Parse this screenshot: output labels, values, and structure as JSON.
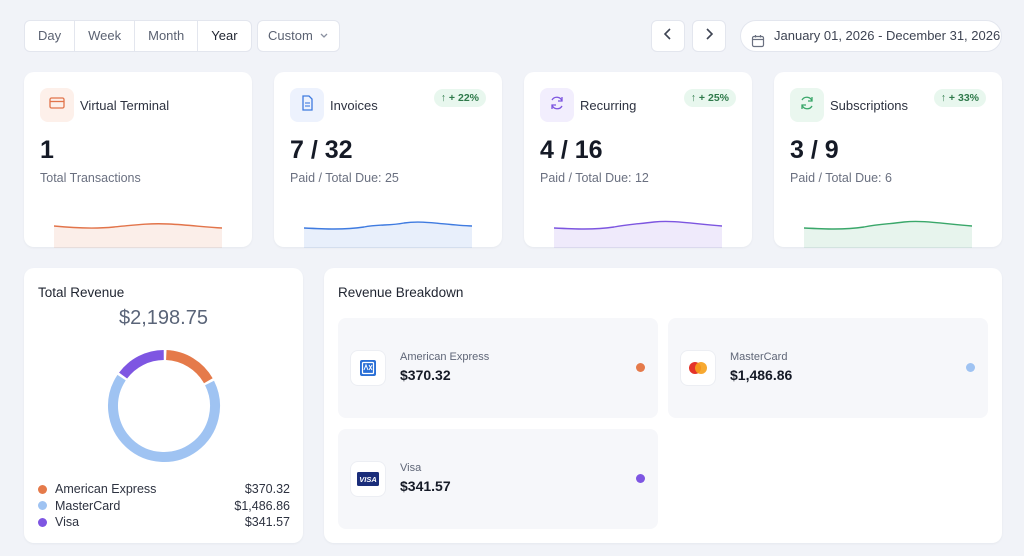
{
  "toolbar": {
    "ranges": [
      "Day",
      "Week",
      "Month",
      "Year"
    ],
    "active_range": "Year",
    "custom_label": "Custom",
    "date_range": "January 01, 2026 - December 31, 2026"
  },
  "stats": [
    {
      "title": "Virtual Terminal",
      "value": "1",
      "subtitle": "Total Transactions",
      "badge": "",
      "icon": "credit-card-icon",
      "color": "#e2744a",
      "icon_bg": "#fdf0ea"
    },
    {
      "title": "Invoices",
      "value": "7 / 32",
      "subtitle": "Paid / Total Due: 25",
      "badge": "↑ + 22%",
      "icon": "document-icon",
      "color": "#3f7be0",
      "icon_bg": "#edf2fd"
    },
    {
      "title": "Recurring",
      "value": "4 / 16",
      "subtitle": "Paid / Total Due: 12",
      "badge": "↑ + 25%",
      "icon": "refresh-icon",
      "color": "#7d56e0",
      "icon_bg": "#f2eefd"
    },
    {
      "title": "Subscriptions",
      "value": "3 / 9",
      "subtitle": "Paid / Total Due: 6",
      "badge": "↑ + 33%",
      "icon": "refresh-icon",
      "color": "#3aa76a",
      "icon_bg": "#eaf7ef"
    }
  ],
  "revenue": {
    "title": "Total Revenue",
    "total": "$2,198.75",
    "items": [
      {
        "name": "American Express",
        "amount": "$370.32",
        "value": 370.32,
        "color": "#e57a4a"
      },
      {
        "name": "MasterCard",
        "amount": "$1,486.86",
        "value": 1486.86,
        "color": "#9fc3f2"
      },
      {
        "name": "Visa",
        "amount": "$341.57",
        "value": 341.57,
        "color": "#7e56e2"
      }
    ]
  },
  "breakdown": {
    "title": "Revenue Breakdown",
    "tiles": [
      {
        "name": "American Express",
        "amount": "$370.32",
        "logo": "amex-logo-icon",
        "color": "#e57a4a"
      },
      {
        "name": "MasterCard",
        "amount": "$1,486.86",
        "logo": "mastercard-logo-icon",
        "color": "#9fc3f2"
      },
      {
        "name": "Visa",
        "amount": "$341.57",
        "logo": "visa-logo-icon",
        "color": "#7e56e2"
      }
    ]
  }
}
